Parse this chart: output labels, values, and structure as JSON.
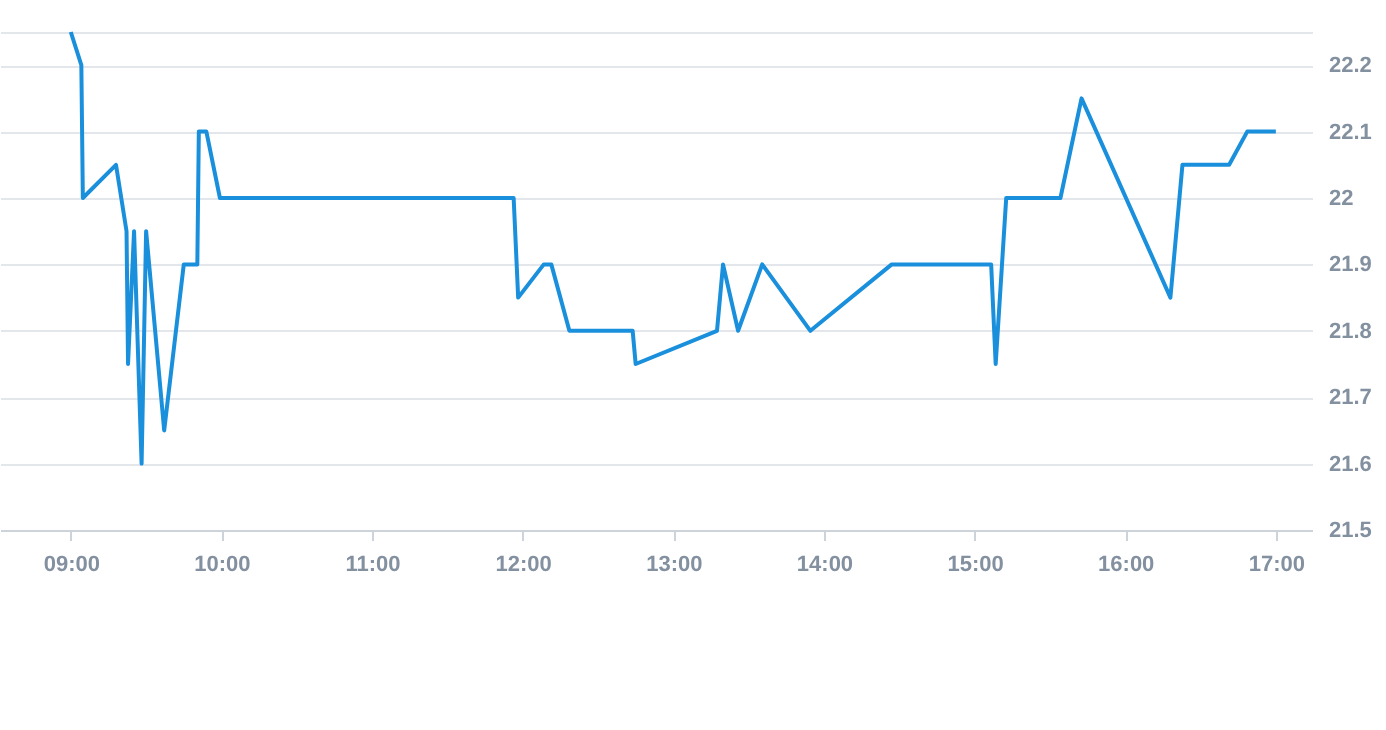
{
  "chart_data": {
    "type": "line",
    "x": [
      9.0,
      9.07,
      9.08,
      9.3,
      9.37,
      9.38,
      9.42,
      9.47,
      9.5,
      9.62,
      9.75,
      9.84,
      9.85,
      9.9,
      9.99,
      11.94,
      11.97,
      12.14,
      12.19,
      12.31,
      12.73,
      12.75,
      13.29,
      13.33,
      13.43,
      13.59,
      13.91,
      14.45,
      15.11,
      15.14,
      15.21,
      15.57,
      15.71,
      16.3,
      16.38,
      16.69,
      16.81,
      17.0
    ],
    "series": [
      {
        "color": "#1a90dc",
        "values": [
          22.25,
          22.2,
          22.0,
          22.05,
          21.95,
          21.75,
          21.95,
          21.6,
          21.95,
          21.65,
          21.9,
          21.9,
          22.1,
          22.1,
          22.0,
          22.0,
          21.85,
          21.9,
          21.9,
          21.8,
          21.8,
          21.75,
          21.8,
          21.9,
          21.8,
          21.9,
          21.8,
          21.9,
          21.9,
          21.75,
          22.0,
          22.0,
          22.15,
          21.85,
          22.05,
          22.05,
          22.1,
          22.1
        ]
      }
    ],
    "xlim": [
      8.53,
      17.24
    ],
    "xticks": [
      {
        "value": 9,
        "label": "09:00"
      },
      {
        "value": 10,
        "label": "10:00"
      },
      {
        "value": 11,
        "label": "11:00"
      },
      {
        "value": 12,
        "label": "12:00"
      },
      {
        "value": 13,
        "label": "13:00"
      },
      {
        "value": 14,
        "label": "14:00"
      },
      {
        "value": 15,
        "label": "15:00"
      },
      {
        "value": 16,
        "label": "16:00"
      },
      {
        "value": 17,
        "label": "17:00"
      }
    ],
    "ylim": [
      21.5,
      22.25
    ],
    "yticks": [
      21.5,
      21.6,
      21.7,
      21.8,
      21.9,
      22,
      22.1,
      22.2,
      {
        "value": 22.25,
        "label": null
      }
    ],
    "grid": "y",
    "marker": "none",
    "line_style": "solid"
  }
}
